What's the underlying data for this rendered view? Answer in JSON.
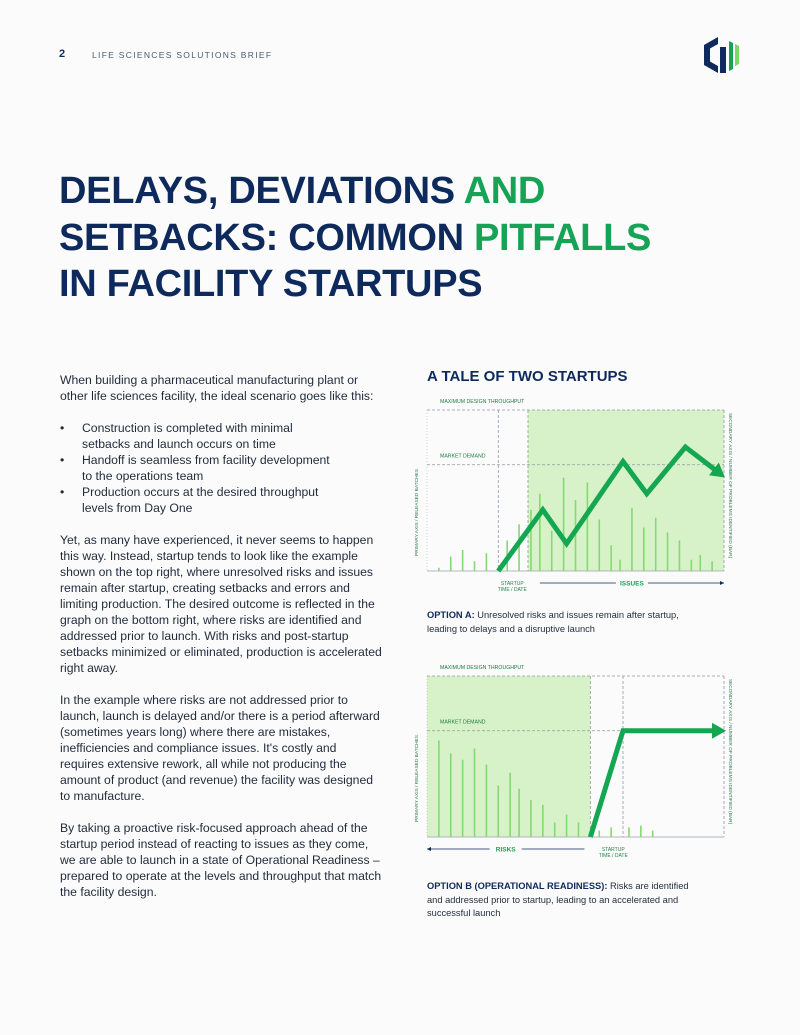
{
  "header": {
    "page_number": "2",
    "kicker": "LIFE SCIENCES SOLUTIONS BRIEF"
  },
  "title": [
    [
      {
        "text": "DELAYS, DEVIATIONS ",
        "accent": false
      },
      {
        "text": "AND",
        "accent": true
      }
    ],
    [
      {
        "text": "SETBACKS: COMMON ",
        "accent": false
      },
      {
        "text": "PITFALLS",
        "accent": true
      }
    ],
    [
      {
        "text": "IN FACILITY STARTUPS",
        "accent": false
      }
    ]
  ],
  "body": {
    "intro": "When building a pharmaceutical manufacturing plant or other life sciences facility, the ideal scenario goes like this:",
    "bullets": [
      "Construction is completed with minimal setbacks and launch occurs on time",
      "Handoff is seamless from facility development to the operations team",
      "Production occurs at the desired throughput levels from Day One"
    ],
    "paragraphs": [
      "Yet, as many have experienced, it never seems to happen this way. Instead, startup tends to look like the example shown on the top right, where unresolved risks and issues remain after startup, creating setbacks and errors and limiting production. The desired outcome is reflected in the graph on the bottom right, where risks are identified and addressed prior to launch. With risks and post-startup setbacks minimized or eliminated, production is accelerated right away.",
      "In the example where risks are not addressed prior to launch, launch is delayed and/or there is a period afterward (sometimes years long) where there are mistakes, inefficiencies and compliance issues. It's costly and requires extensive rework, all while not producing the amount of product (and revenue) the facility was designed to manufacture.",
      "By taking a proactive risk-focused approach ahead of the startup period instead of reacting to issues as they come, we are able to launch in a state of Operational Readiness – prepared to operate at the levels and throughput that match the facility design."
    ]
  },
  "side_heading": "A TALE OF TWO STARTUPS",
  "chart_data": [
    {
      "type": "bar_line",
      "ylabel": "PRIMARY AXIS / RELEASED BATCHES",
      "y2label": "SECONDARY AXIS / NUMBER OF PROBLEMS IDENTIFIED (BAR)",
      "xlim": [
        0,
        100
      ],
      "ylim": [
        0,
        100
      ],
      "reference_lines": [
        {
          "value": 100,
          "label": "MAXIMUM DESIGN THROUGHPUT"
        },
        {
          "value": 66,
          "label": "MARKET DEMAND"
        }
      ],
      "shaded": [
        34,
        100
      ],
      "dashed_x": [
        24,
        34
      ],
      "startup": {
        "x": 24,
        "label": [
          "STARTUP",
          "TIME / DATE"
        ]
      },
      "phase": {
        "label": "ISSUES",
        "from": 38,
        "to": 100
      },
      "series": [
        {
          "type": "bar",
          "color": "#86d872",
          "x": [
            4,
            8,
            12,
            16,
            20,
            27,
            31,
            35,
            38,
            42,
            46,
            50,
            54,
            58,
            62,
            65,
            69,
            73,
            77,
            81,
            85,
            89,
            92,
            96
          ],
          "values": [
            2,
            9,
            13,
            6,
            11,
            19,
            29,
            38,
            48,
            25,
            58,
            44,
            55,
            32,
            16,
            7,
            39,
            27,
            33,
            24,
            19,
            7,
            10,
            6
          ]
        },
        {
          "type": "line",
          "color": "#14a651",
          "x": [
            24,
            39,
            47,
            66,
            74,
            87,
            99
          ],
          "values": [
            0,
            38,
            17,
            68,
            48,
            77,
            60
          ]
        }
      ],
      "caption_lead": "OPTION A:",
      "caption": "Unresolved risks and issues remain after startup, leading to delays and a disruptive launch"
    },
    {
      "type": "bar_line",
      "ylabel": "PRIMARY AXIS / RELEASED BATCHES",
      "y2label": "SECONDARY AXIS / NUMBER OF PROBLEMS IDENTIFIED (BAR)",
      "xlim": [
        0,
        100
      ],
      "ylim": [
        0,
        100
      ],
      "reference_lines": [
        {
          "value": 100,
          "label": "MAXIMUM DESIGN THROUGHPUT"
        },
        {
          "value": 66,
          "label": "MARKET DEMAND"
        }
      ],
      "shaded": [
        0,
        55
      ],
      "dashed_x": [
        55,
        66
      ],
      "startup": {
        "x": 58,
        "label": [
          "STARTUP",
          "TIME / DATE"
        ]
      },
      "phase": {
        "label": "RISKS",
        "from": 0,
        "to": 53
      },
      "series": [
        {
          "type": "bar",
          "color": "#86d872",
          "x": [
            4,
            8,
            12,
            16,
            20,
            24,
            28,
            31,
            35,
            39,
            43,
            47,
            51,
            58,
            62,
            68,
            72,
            76
          ],
          "values": [
            60,
            52,
            48,
            55,
            45,
            32,
            40,
            30,
            23,
            20,
            9,
            14,
            9,
            4,
            6,
            6,
            7,
            4
          ]
        },
        {
          "type": "line",
          "color": "#14a651",
          "x": [
            55,
            66,
            99
          ],
          "values": [
            0,
            66,
            66
          ]
        }
      ],
      "caption_lead": "OPTION B (OPERATIONAL READINESS):",
      "caption": "Risks are identified and addressed prior to startup, leading to an accelerated and successful launch"
    }
  ]
}
